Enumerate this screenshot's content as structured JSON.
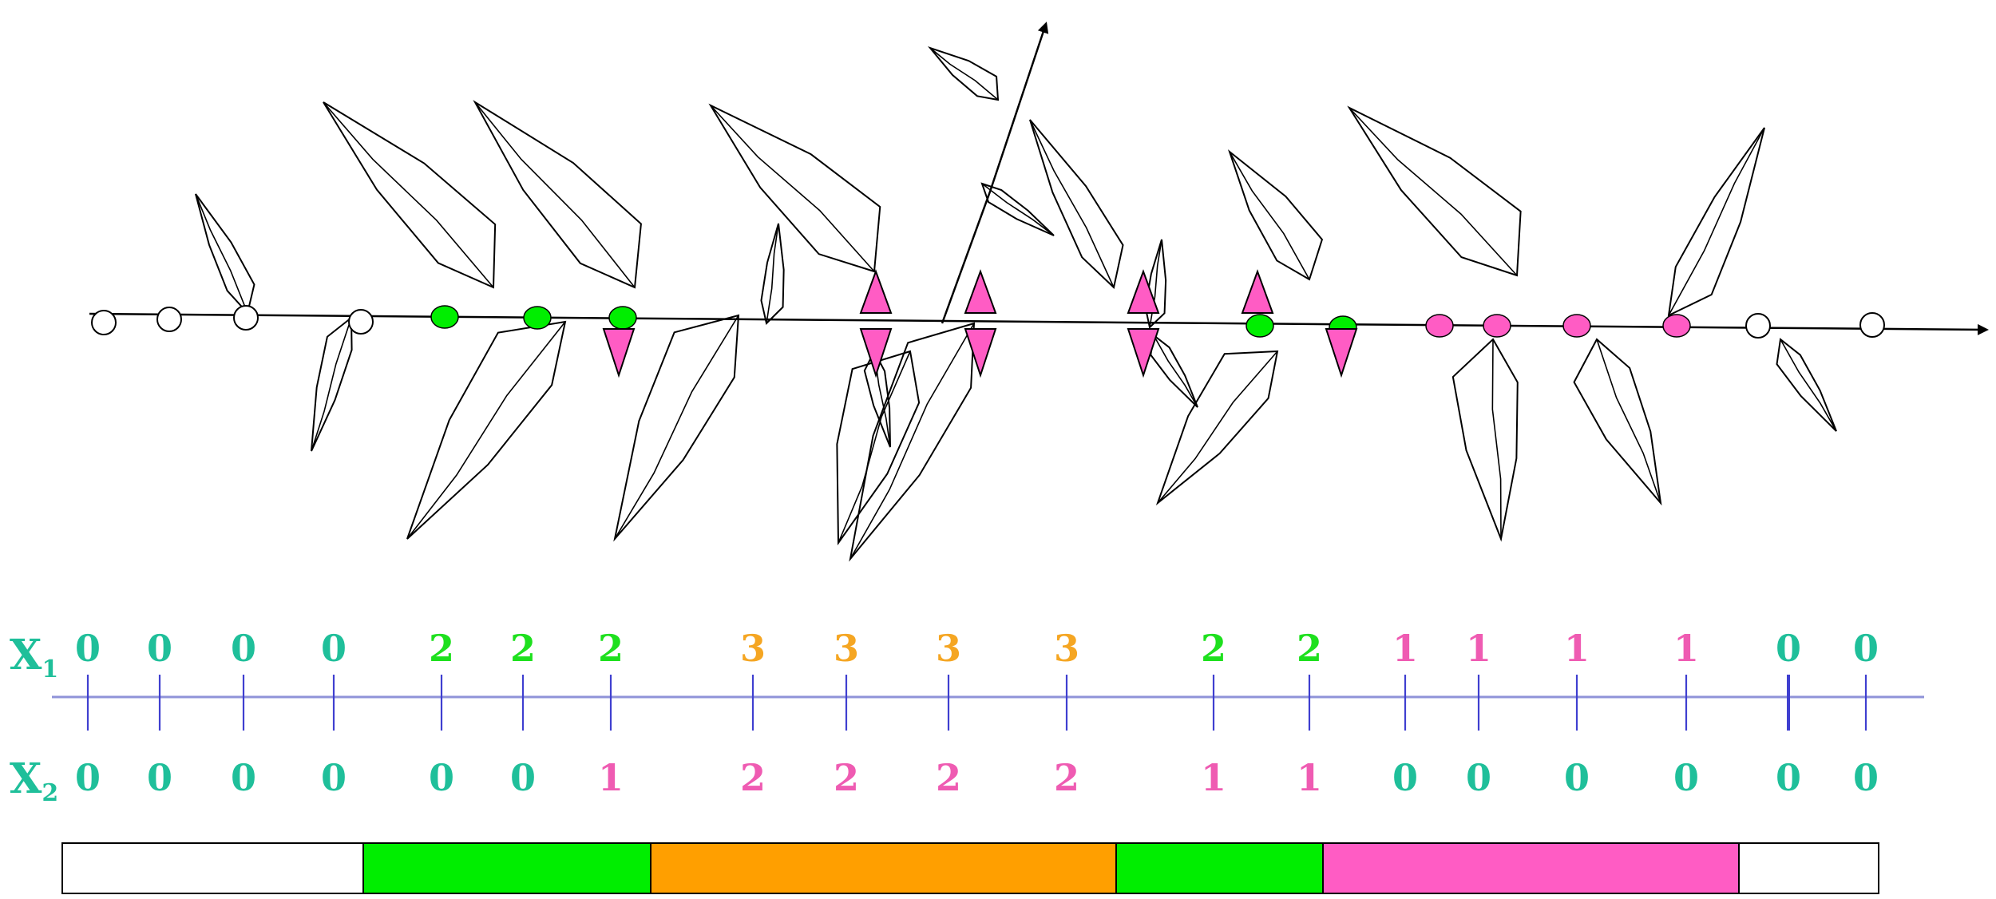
{
  "colors": {
    "teal": "#1fbf9a",
    "green": "#1ee01e",
    "orange": "#f5a623",
    "pink": "#ef5bb2",
    "bar_green": "#00ee00",
    "bar_orange": "#ff9f00",
    "bar_pink": "#ff5cc4",
    "axis": "#8f93d8",
    "tick": "#3f3fd0"
  },
  "labels": {
    "x1_main": "X",
    "x1_sub": "1",
    "x2_main": "X",
    "x2_sub": "2"
  },
  "positions": [
    {
      "x1": "0",
      "x1_color": "teal",
      "x2": "0",
      "x2_color": "teal"
    },
    {
      "x1": "0",
      "x1_color": "teal",
      "x2": "0",
      "x2_color": "teal"
    },
    {
      "x1": "0",
      "x1_color": "teal",
      "x2": "0",
      "x2_color": "teal"
    },
    {
      "x1": "0",
      "x1_color": "teal",
      "x2": "0",
      "x2_color": "teal"
    },
    {
      "x1": "2",
      "x1_color": "green",
      "x2": "0",
      "x2_color": "teal"
    },
    {
      "x1": "2",
      "x1_color": "green",
      "x2": "0",
      "x2_color": "teal"
    },
    {
      "x1": "2",
      "x1_color": "green",
      "x2": "1",
      "x2_color": "pink"
    },
    {
      "x1": "3",
      "x1_color": "orange",
      "x2": "2",
      "x2_color": "pink"
    },
    {
      "x1": "3",
      "x1_color": "orange",
      "x2": "2",
      "x2_color": "pink"
    },
    {
      "x1": "3",
      "x1_color": "orange",
      "x2": "2",
      "x2_color": "pink"
    },
    {
      "x1": "3",
      "x1_color": "orange",
      "x2": "2",
      "x2_color": "pink"
    },
    {
      "x1": "2",
      "x1_color": "green",
      "x2": "1",
      "x2_color": "pink"
    },
    {
      "x1": "2",
      "x1_color": "green",
      "x2": "1",
      "x2_color": "pink"
    },
    {
      "x1": "1",
      "x1_color": "pink",
      "x2": "0",
      "x2_color": "teal"
    },
    {
      "x1": "1",
      "x1_color": "pink",
      "x2": "0",
      "x2_color": "teal"
    },
    {
      "x1": "1",
      "x1_color": "pink",
      "x2": "0",
      "x2_color": "teal"
    },
    {
      "x1": "1",
      "x1_color": "pink",
      "x2": "0",
      "x2_color": "teal"
    },
    {
      "x1": "0",
      "x1_color": "teal",
      "x2": "0",
      "x2_color": "teal"
    },
    {
      "x1": "0",
      "x1_color": "teal",
      "x2": "0",
      "x2_color": "teal"
    }
  ],
  "bar_segments": [
    {
      "color": "#ffffff"
    },
    {
      "color": "#00ee00"
    },
    {
      "color": "#ff9f00"
    },
    {
      "color": "#00ee00"
    },
    {
      "color": "#ff5cc4"
    },
    {
      "color": "#ffffff"
    }
  ]
}
